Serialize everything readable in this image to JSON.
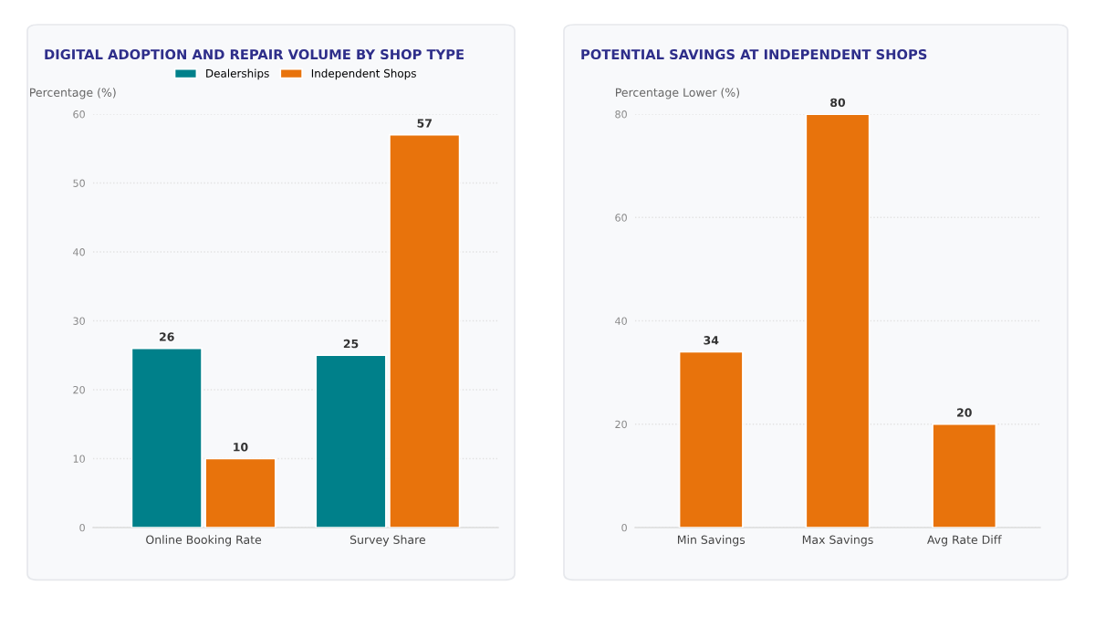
{
  "chart_data": [
    {
      "type": "bar",
      "title": "DIGITAL ADOPTION AND REPAIR VOLUME BY SHOP TYPE",
      "ylabel": "Percentage (%)",
      "categories": [
        "Online Booking Rate",
        "Survey Share"
      ],
      "series": [
        {
          "name": "Dealerships",
          "color": "#00808a",
          "values": [
            26,
            25
          ]
        },
        {
          "name": "Independent Shops",
          "color": "#e8730c",
          "values": [
            10,
            57
          ]
        }
      ],
      "ylim": [
        0,
        60
      ],
      "yticks": [
        0,
        10,
        20,
        30,
        40,
        50,
        60
      ],
      "grid": "y",
      "legend": "top",
      "data_labels": true
    },
    {
      "type": "bar",
      "title": "POTENTIAL SAVINGS AT INDEPENDENT SHOPS",
      "ylabel": "Percentage Lower (%)",
      "categories": [
        "Min Savings",
        "Max Savings",
        "Avg Rate Diff"
      ],
      "series": [
        {
          "color": "#e8730c",
          "values": [
            34,
            80,
            20
          ]
        }
      ],
      "ylim": [
        0,
        80
      ],
      "yticks": [
        0,
        20,
        40,
        60,
        80
      ],
      "grid": "y",
      "legend": false,
      "data_labels": true
    }
  ]
}
